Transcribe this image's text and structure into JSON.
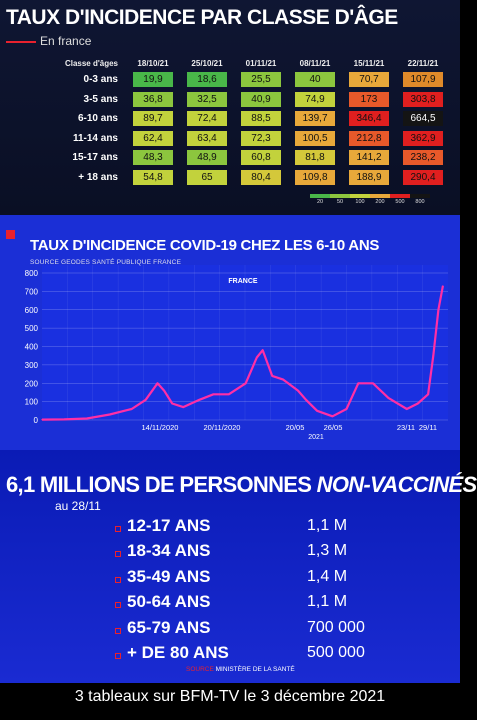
{
  "panel1": {
    "title": "TAUX D'INCIDENCE PAR CLASSE D'ÂGE",
    "subtitle": "En france",
    "row_header": "Classe d'âges",
    "dates": [
      "18/10/21",
      "25/10/21",
      "01/11/21",
      "08/11/21",
      "15/11/21",
      "22/11/21"
    ],
    "rows": [
      {
        "label": "0-3 ans",
        "values": [
          "19,9",
          "18,6",
          "25,5",
          "40",
          "70,7",
          "107,9"
        ]
      },
      {
        "label": "3-5 ans",
        "values": [
          "36,8",
          "32,5",
          "40,9",
          "74,9",
          "173",
          "303,8"
        ]
      },
      {
        "label": "6-10 ans",
        "values": [
          "89,7",
          "72,4",
          "88,5",
          "139,7",
          "346,4",
          "664,5"
        ]
      },
      {
        "label": "11-14 ans",
        "values": [
          "62,4",
          "63,4",
          "72,3",
          "100,5",
          "212,8",
          "362,9"
        ]
      },
      {
        "label": "15-17 ans",
        "values": [
          "48,3",
          "48,9",
          "60,8",
          "81,8",
          "141,2",
          "238,2"
        ]
      },
      {
        "label": "+ 18 ans",
        "values": [
          "54,8",
          "65",
          "80,4",
          "109,8",
          "188,9",
          "290,4"
        ]
      }
    ],
    "cell_colors": [
      [
        "#49b749",
        "#49b749",
        "#8cc63e",
        "#8cc63e",
        "#e8a83a",
        "#e08a2a"
      ],
      [
        "#8cc63e",
        "#8cc63e",
        "#8cc63e",
        "#c2d23c",
        "#e8592a",
        "#e01f1f"
      ],
      [
        "#c2d23c",
        "#c2d23c",
        "#c2d23c",
        "#e8a83a",
        "#e01f1f",
        "#141414"
      ],
      [
        "#c2d23c",
        "#c2d23c",
        "#c2d23c",
        "#e8a83a",
        "#e8592a",
        "#e01f1f"
      ],
      [
        "#8cc63e",
        "#8cc63e",
        "#c2d23c",
        "#d4c83a",
        "#e8a83a",
        "#e8592a"
      ],
      [
        "#c2d23c",
        "#c2d23c",
        "#d4c83a",
        "#e8a83a",
        "#e8a83a",
        "#e01f1f"
      ]
    ],
    "legend": [
      {
        "label": "20",
        "color": "#49b749"
      },
      {
        "label": "50",
        "color": "#8cc63e"
      },
      {
        "label": "100",
        "color": "#c2d23c"
      },
      {
        "label": "200",
        "color": "#e8a83a"
      },
      {
        "label": "500",
        "color": "#e01f1f"
      },
      {
        "label": "800",
        "color": "#141414"
      }
    ]
  },
  "panel2": {
    "title": "TAUX D'INCIDENCE COVID-19 CHEZ LES 6-10 ANS",
    "source": "SOURCE GEODES SANTÉ PUBLIQUE FRANCE",
    "series_label": "FRANCE",
    "year_label": "2021",
    "line_color": "#ff2ea6"
  },
  "panel3": {
    "title_main": "6,1 MILLIONS DE PERSONNES ",
    "title_italic": "NON-VACCINÉS",
    "date": "au 28/11",
    "rows": [
      {
        "label": "12-17 ANS",
        "value": "1,1 M"
      },
      {
        "label": "18-34 ANS",
        "value": "1,3 M"
      },
      {
        "label": "35-49 ANS",
        "value": "1,4 M"
      },
      {
        "label": "50-64 ANS",
        "value": "1,1 M"
      },
      {
        "label": "65-79 ANS",
        "value": "700 000"
      },
      {
        "label": "+ DE 80 ANS",
        "value": "500 000"
      }
    ],
    "source_label": "SOURCE",
    "source_text": " MINISTÈRE DE LA SANTÉ"
  },
  "caption": "3 tableaux sur BFM-TV le 3 décembre 2021",
  "chart_data": [
    {
      "type": "table",
      "title": "TAUX D'INCIDENCE PAR CLASSE D'ÂGE",
      "subtitle": "En france",
      "columns": [
        "18/10/21",
        "25/10/21",
        "01/11/21",
        "08/11/21",
        "15/11/21",
        "22/11/21"
      ],
      "rows": [
        {
          "name": "0-3 ans",
          "values": [
            19.9,
            18.6,
            25.5,
            40,
            70.7,
            107.9
          ]
        },
        {
          "name": "3-5 ans",
          "values": [
            36.8,
            32.5,
            40.9,
            74.9,
            173,
            303.8
          ]
        },
        {
          "name": "6-10 ans",
          "values": [
            89.7,
            72.4,
            88.5,
            139.7,
            346.4,
            664.5
          ]
        },
        {
          "name": "11-14 ans",
          "values": [
            62.4,
            63.4,
            72.3,
            100.5,
            212.8,
            362.9
          ]
        },
        {
          "name": "15-17 ans",
          "values": [
            48.3,
            48.9,
            60.8,
            81.8,
            141.2,
            238.2
          ]
        },
        {
          "name": "+ 18 ans",
          "values": [
            54.8,
            65,
            80.4,
            109.8,
            188.9,
            290.4
          ]
        }
      ],
      "legend_thresholds": [
        20,
        50,
        100,
        200,
        500,
        800
      ]
    },
    {
      "type": "line",
      "title": "TAUX D'INCIDENCE COVID-19 CHEZ LES 6-10 ANS",
      "series": [
        {
          "name": "FRANCE",
          "values": [
            [
              "2020-06-01",
              2
            ],
            [
              "2020-07-01",
              3
            ],
            [
              "2020-08-01",
              8
            ],
            [
              "2020-09-01",
              30
            ],
            [
              "2020-10-01",
              60
            ],
            [
              "2020-10-20",
              110
            ],
            [
              "2020-11-05",
              200
            ],
            [
              "2020-11-14",
              160
            ],
            [
              "2020-11-25",
              90
            ],
            [
              "2020-12-10",
              70
            ],
            [
              "2021-01-01",
              110
            ],
            [
              "2021-01-20",
              140
            ],
            [
              "2021-02-10",
              140
            ],
            [
              "2021-03-05",
              200
            ],
            [
              "2021-03-20",
              340
            ],
            [
              "2021-03-28",
              380
            ],
            [
              "2021-04-10",
              240
            ],
            [
              "2021-04-25",
              220
            ],
            [
              "2021-05-15",
              160
            ],
            [
              "2021-05-26",
              110
            ],
            [
              "2021-06-10",
              50
            ],
            [
              "2021-07-01",
              20
            ],
            [
              "2021-07-20",
              60
            ],
            [
              "2021-08-05",
              200
            ],
            [
              "2021-08-25",
              200
            ],
            [
              "2021-09-15",
              120
            ],
            [
              "2021-10-10",
              60
            ],
            [
              "2021-10-25",
              90
            ],
            [
              "2021-11-08",
              140
            ],
            [
              "2021-11-15",
              350
            ],
            [
              "2021-11-22",
              600
            ],
            [
              "2021-11-28",
              730
            ]
          ]
        }
      ],
      "x_tick_labels": [
        "14/11/2020",
        "20/11/2020",
        "20/05",
        "26/05",
        "23/11",
        "29/11"
      ],
      "xlabel": "2021",
      "ylim": [
        0,
        800
      ],
      "y_ticks": [
        0,
        100,
        200,
        300,
        400,
        500,
        600,
        700,
        800
      ],
      "grid": true
    },
    {
      "type": "table",
      "title": "6,1 MILLIONS DE PERSONNES NON-VACCINÉS",
      "subtitle": "au 28/11",
      "categories": [
        "12-17 ANS",
        "18-34 ANS",
        "35-49 ANS",
        "50-64 ANS",
        "65-79 ANS",
        "+ DE 80 ANS"
      ],
      "values": [
        1100000,
        1300000,
        1400000,
        1100000,
        700000,
        500000
      ]
    }
  ]
}
